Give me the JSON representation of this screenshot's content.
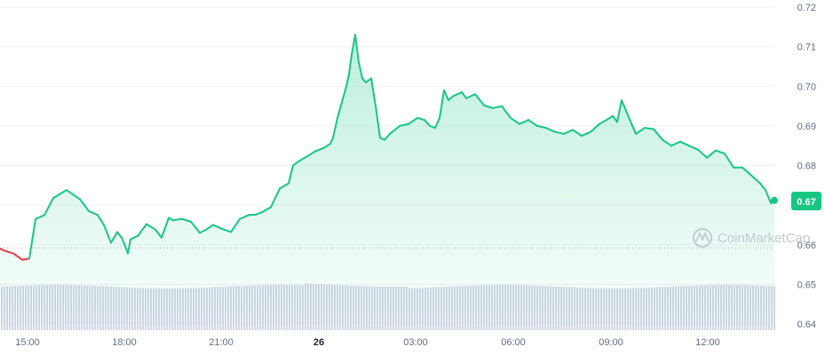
{
  "chart_data": {
    "type": "area",
    "series": [
      {
        "x": [
          0,
          5,
          15,
          25,
          33,
          40,
          50,
          60,
          75,
          90,
          100,
          110,
          117,
          125,
          132,
          137,
          140,
          144,
          147,
          155,
          165,
          175,
          182,
          190,
          195,
          205,
          215,
          225,
          232,
          240,
          250,
          260,
          270,
          280,
          288,
          295,
          305,
          315,
          325,
          330,
          336,
          345,
          355,
          365,
          372,
          375,
          380,
          385,
          390,
          393,
          396,
          400,
          404,
          408,
          412,
          418,
          423,
          428,
          433,
          440,
          450,
          460,
          470,
          478,
          484,
          490,
          495,
          500,
          505,
          510,
          515,
          520,
          525,
          530,
          535,
          545,
          555,
          565,
          575,
          585,
          595,
          605,
          615,
          625,
          635,
          645,
          655,
          665,
          675,
          683,
          690,
          695,
          700,
          708,
          716,
          726,
          736,
          746,
          756,
          766,
          776,
          786,
          796,
          806,
          816,
          826,
          836,
          846,
          856,
          862,
          868,
          872
        ],
        "values": [
          0.659,
          0.6585,
          0.6578,
          0.6562,
          0.6565,
          0.6665,
          0.6675,
          0.6718,
          0.6738,
          0.6715,
          0.6685,
          0.6675,
          0.665,
          0.6605,
          0.6632,
          0.6618,
          0.6602,
          0.6578,
          0.6614,
          0.6622,
          0.6652,
          0.6638,
          0.6618,
          0.6668,
          0.6662,
          0.6665,
          0.6658,
          0.663,
          0.6638,
          0.665,
          0.664,
          0.6632,
          0.6665,
          0.6675,
          0.6676,
          0.6682,
          0.6695,
          0.6742,
          0.6755,
          0.68,
          0.681,
          0.6822,
          0.6836,
          0.6845,
          0.6855,
          0.687,
          0.692,
          0.696,
          0.7,
          0.703,
          0.708,
          0.713,
          0.706,
          0.702,
          0.701,
          0.702,
          0.695,
          0.687,
          0.6865,
          0.6882,
          0.69,
          0.6905,
          0.692,
          0.6915,
          0.69,
          0.6895,
          0.692,
          0.699,
          0.6965,
          0.6975,
          0.698,
          0.6985,
          0.697,
          0.6975,
          0.698,
          0.6952,
          0.6945,
          0.695,
          0.692,
          0.6905,
          0.6915,
          0.69,
          0.6895,
          0.6885,
          0.688,
          0.689,
          0.6875,
          0.6885,
          0.6905,
          0.6915,
          0.6925,
          0.691,
          0.6965,
          0.6922,
          0.688,
          0.6895,
          0.6892,
          0.6865,
          0.685,
          0.686,
          0.685,
          0.684,
          0.682,
          0.6838,
          0.683,
          0.6795,
          0.6795,
          0.6775,
          0.6755,
          0.6738,
          0.6705,
          0.6712
        ]
      }
    ],
    "y_ticks": [
      "0.72",
      "0.71",
      "0.70",
      "0.69",
      "0.68",
      "0.67",
      "0.66",
      "0.65",
      "0.64"
    ],
    "x_ticks": [
      {
        "label": "15:00",
        "bold": false
      },
      {
        "label": "18:00",
        "bold": false
      },
      {
        "label": "21:00",
        "bold": false
      },
      {
        "label": "26",
        "bold": true
      },
      {
        "label": "03:00",
        "bold": false
      },
      {
        "label": "06:00",
        "bold": false
      },
      {
        "label": "09:00",
        "bold": false
      },
      {
        "label": "12:00",
        "bold": false
      }
    ],
    "ylim": [
      0.64,
      0.72
    ],
    "baseline_value": 0.6592,
    "current_value_label": "0.67",
    "colors": {
      "up": "#16c784",
      "down": "#ea3943",
      "volume": "#cfd6e4",
      "grid": "#eff2f5"
    },
    "grid": true,
    "has_volume": true
  },
  "watermark": {
    "text": "CoinMarketCap"
  }
}
